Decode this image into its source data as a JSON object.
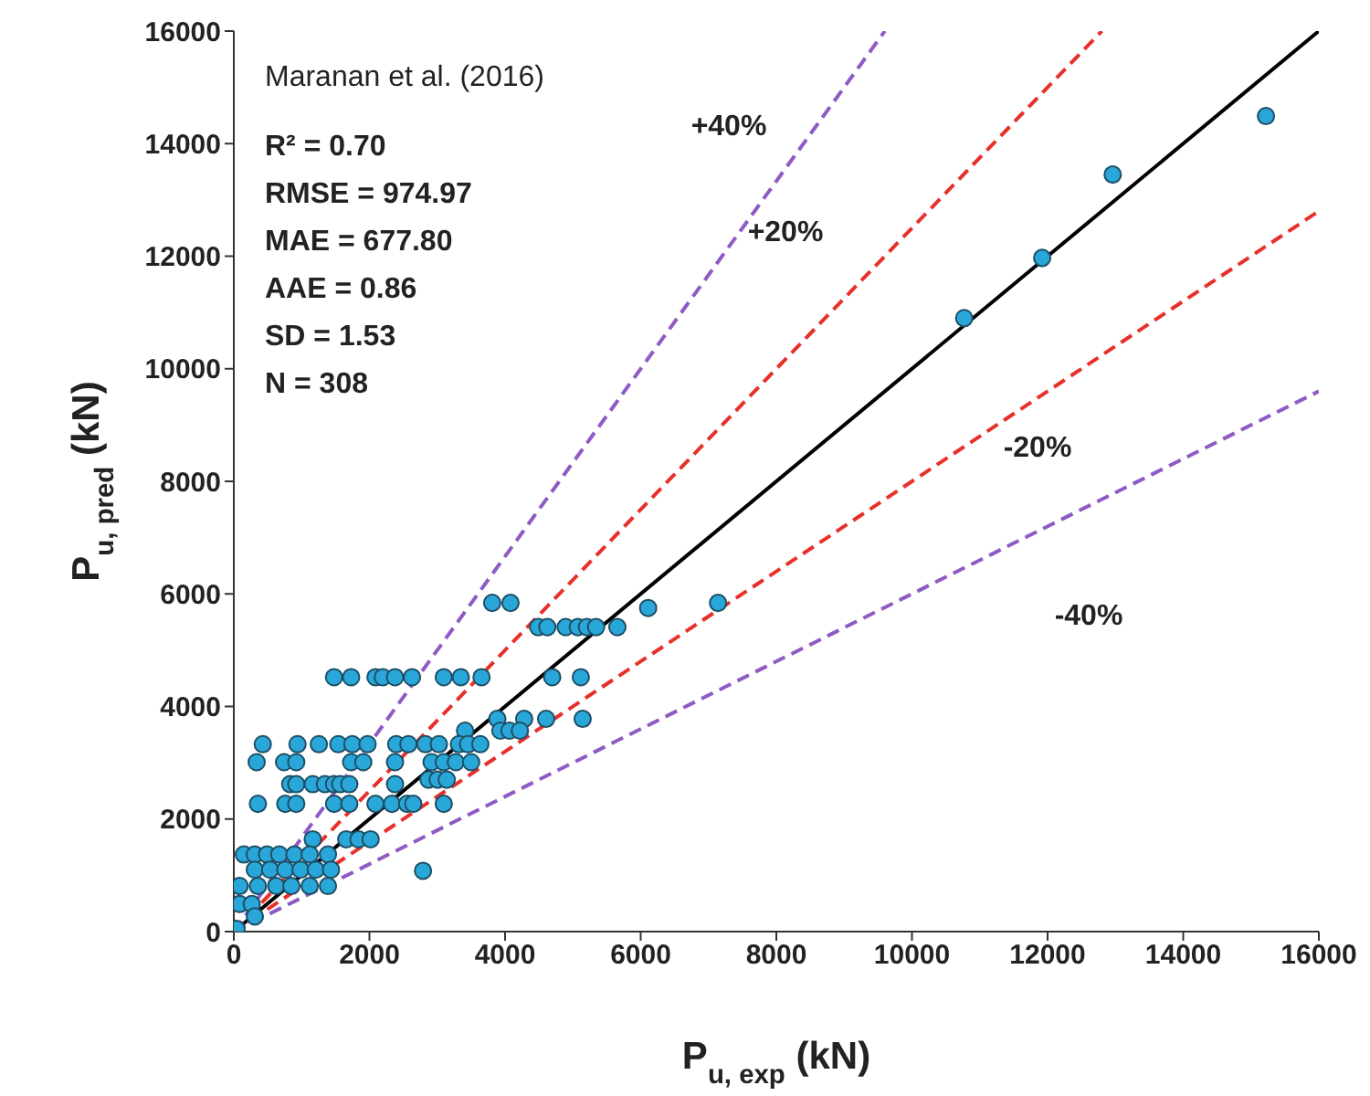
{
  "chart_data": {
    "type": "scatter",
    "xlabel": "P$_{u, exp}$ (kN)",
    "ylabel": "P$_{u, pred}$ (kN)",
    "xlim": [
      0,
      16000
    ],
    "ylim": [
      0,
      16000
    ],
    "xticks": [
      0,
      2000,
      4000,
      6000,
      8000,
      10000,
      12000,
      14000,
      16000
    ],
    "yticks": [
      0,
      2000,
      4000,
      6000,
      8000,
      10000,
      12000,
      14000,
      16000
    ],
    "grid": false,
    "legend": false,
    "annotations": [
      "Maranan et al. (2016)",
      "R² = 0.70",
      "RMSE = 974.97",
      "MAE = 677.80",
      "AAE = 0.86",
      "SD = 1.53",
      "N = 308",
      "+40%",
      "+20%",
      "-20%",
      "-40%"
    ],
    "series": [
      {
        "marker": "circle",
        "color": "#2aa7d9",
        "x": [
          1478,
          1730,
          2089,
          2197,
          2377,
          2628,
          3096,
          3347,
          3653,
          4695,
          5117,
          4488,
          4623,
          4893,
          5072,
          5207,
          5342,
          5656,
          3810,
          4080,
          6110,
          7140,
          3886,
          4282,
          4605,
          5144,
          3410,
          3931,
          4066,
          4219,
          427,
          939,
          1254,
          1541,
          1748,
          1972,
          2395,
          2574,
          2826,
          3024,
          3320,
          3455,
          3635,
          337,
          741,
          921,
          1730,
          1909,
          2377,
          2916,
          3096,
          3275,
          3500,
          2871,
          3006,
          3140,
          831,
          921,
          1164,
          1343,
          1478,
          1568,
          1703,
          2377,
          355,
          759,
          921,
          1478,
          1703,
          2089,
          2332,
          2556,
          2646,
          3096,
          1164,
          1658,
          1838,
          2017,
          148,
          310,
          490,
          670,
          894,
          1119,
          1388,
          310,
          535,
          759,
          984,
          1209,
          1433,
          2790,
          86,
          355,
          625,
          849,
          1119,
          1388,
          86,
          265,
          310,
          40,
          10770,
          11920,
          12960,
          15220
        ],
        "values": [
          4520,
          4520,
          4520,
          4520,
          4520,
          4520,
          4520,
          4520,
          4520,
          4520,
          4520,
          5410,
          5410,
          5410,
          5410,
          5410,
          5410,
          5410,
          5840,
          5840,
          5750,
          5840,
          3780,
          3780,
          3780,
          3780,
          3570,
          3570,
          3570,
          3570,
          3330,
          3330,
          3330,
          3330,
          3330,
          3330,
          3330,
          3330,
          3330,
          3330,
          3330,
          3330,
          3330,
          3010,
          3010,
          3010,
          3010,
          3010,
          3010,
          3010,
          3010,
          3010,
          3010,
          2700,
          2700,
          2700,
          2620,
          2620,
          2620,
          2620,
          2620,
          2620,
          2620,
          2620,
          2270,
          2270,
          2270,
          2270,
          2270,
          2270,
          2270,
          2270,
          2270,
          2270,
          1640,
          1640,
          1640,
          1640,
          1370,
          1370,
          1370,
          1370,
          1370,
          1370,
          1370,
          1100,
          1100,
          1100,
          1100,
          1100,
          1100,
          1080,
          810,
          810,
          810,
          810,
          810,
          810,
          490,
          490,
          270,
          50,
          10900,
          11970,
          13450,
          14490
        ]
      },
      {
        "type": "line",
        "marker": "none",
        "color": "#000000",
        "line_style": "solid",
        "x": [
          0,
          16000
        ],
        "values": [
          0,
          16000
        ]
      },
      {
        "type": "line",
        "marker": "none",
        "color": "#e8302a",
        "line_style": "dashed",
        "x": [
          0,
          12800
        ],
        "values": [
          0,
          16000
        ]
      },
      {
        "type": "line",
        "marker": "none",
        "color": "#e8302a",
        "line_style": "dashed",
        "x": [
          0,
          16000
        ],
        "values": [
          0,
          12800
        ]
      },
      {
        "type": "line",
        "marker": "none",
        "color": "#8e5bc4",
        "line_style": "dashed",
        "x": [
          0,
          9600
        ],
        "values": [
          0,
          16000
        ]
      },
      {
        "type": "line",
        "marker": "none",
        "color": "#8e5bc4",
        "line_style": "dashed",
        "x": [
          0,
          16000
        ],
        "values": [
          0,
          9600
        ]
      }
    ]
  }
}
